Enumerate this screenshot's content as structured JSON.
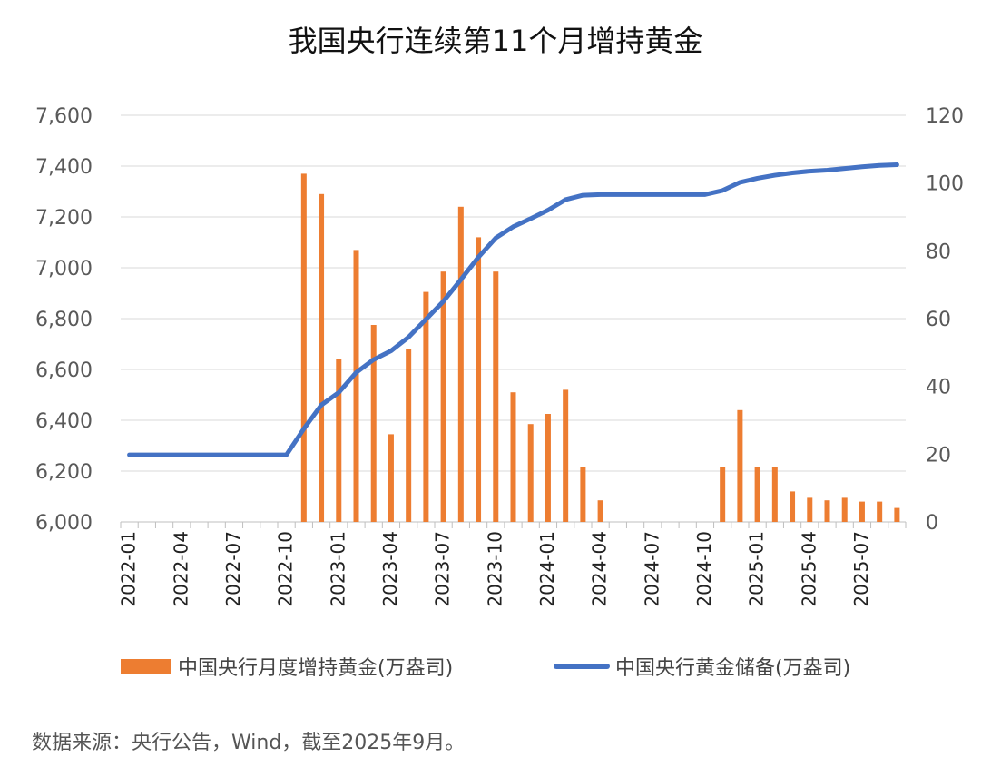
{
  "chart_data": {
    "type": "bar+line",
    "title": "我国央行连续第11个月增持黄金",
    "x": [
      "2022-01",
      "2022-02",
      "2022-03",
      "2022-04",
      "2022-05",
      "2022-06",
      "2022-07",
      "2022-08",
      "2022-09",
      "2022-10",
      "2022-11",
      "2022-12",
      "2023-01",
      "2023-02",
      "2023-03",
      "2023-04",
      "2023-05",
      "2023-06",
      "2023-07",
      "2023-08",
      "2023-09",
      "2023-10",
      "2023-11",
      "2023-12",
      "2024-01",
      "2024-02",
      "2024-03",
      "2024-04",
      "2024-05",
      "2024-06",
      "2024-07",
      "2024-08",
      "2024-09",
      "2024-10",
      "2024-11",
      "2024-12",
      "2025-01",
      "2025-02",
      "2025-03",
      "2025-04",
      "2025-05",
      "2025-06",
      "2025-07",
      "2025-08",
      "2025-09"
    ],
    "x_tick_labels": [
      "2022-01",
      "2022-04",
      "2022-07",
      "2022-10",
      "2023-01",
      "2023-04",
      "2023-07",
      "2023-10",
      "2024-01",
      "2024-04",
      "2024-07",
      "2024-10",
      "2025-01",
      "2025-04",
      "2025-07"
    ],
    "y_left": {
      "ylim": [
        6000,
        7600
      ],
      "ticks": [
        "6,000",
        "6,200",
        "6,400",
        "6,600",
        "6,800",
        "7,000",
        "7,200",
        "7,400",
        "7,600"
      ]
    },
    "y_right": {
      "ylim": [
        0,
        120
      ],
      "ticks": [
        "0",
        "20",
        "40",
        "60",
        "80",
        "100",
        "120"
      ]
    },
    "grid": true,
    "legend_position": "bottom",
    "series": [
      {
        "name": "中国央行月度增持黄金(万盎司)",
        "type": "bar",
        "axis": "left",
        "color": "#ED7D31",
        "values": [
          null,
          null,
          null,
          null,
          null,
          null,
          null,
          null,
          null,
          null,
          7370,
          7290,
          6640,
          7070,
          6775,
          6345,
          6680,
          6905,
          6985,
          7240,
          7120,
          6985,
          6510,
          6385,
          6425,
          6520,
          6215,
          6085,
          null,
          null,
          null,
          null,
          null,
          null,
          6215,
          6440,
          6215,
          6215,
          6120,
          6095,
          6085,
          6095,
          6080,
          6080,
          6055
        ]
      },
      {
        "name": "中国央行黄金储备(万盎司)",
        "type": "line",
        "axis": "right",
        "color": "#4472C4",
        "values": [
          19.8,
          19.8,
          19.8,
          19.8,
          19.8,
          19.8,
          19.8,
          19.8,
          19.8,
          19.8,
          27.5,
          34.5,
          38.2,
          44.1,
          47.9,
          50.5,
          54.5,
          59.8,
          65.1,
          71.5,
          78.1,
          83.8,
          87.1,
          89.5,
          92.0,
          95.1,
          96.4,
          96.6,
          96.6,
          96.6,
          96.6,
          96.6,
          96.6,
          96.6,
          97.8,
          100.2,
          101.4,
          102.3,
          103.0,
          103.5,
          103.8,
          104.3,
          104.8,
          105.2,
          105.4
        ]
      }
    ]
  },
  "source_note": "数据来源：央行公告，Wind，截至2025年9月。"
}
